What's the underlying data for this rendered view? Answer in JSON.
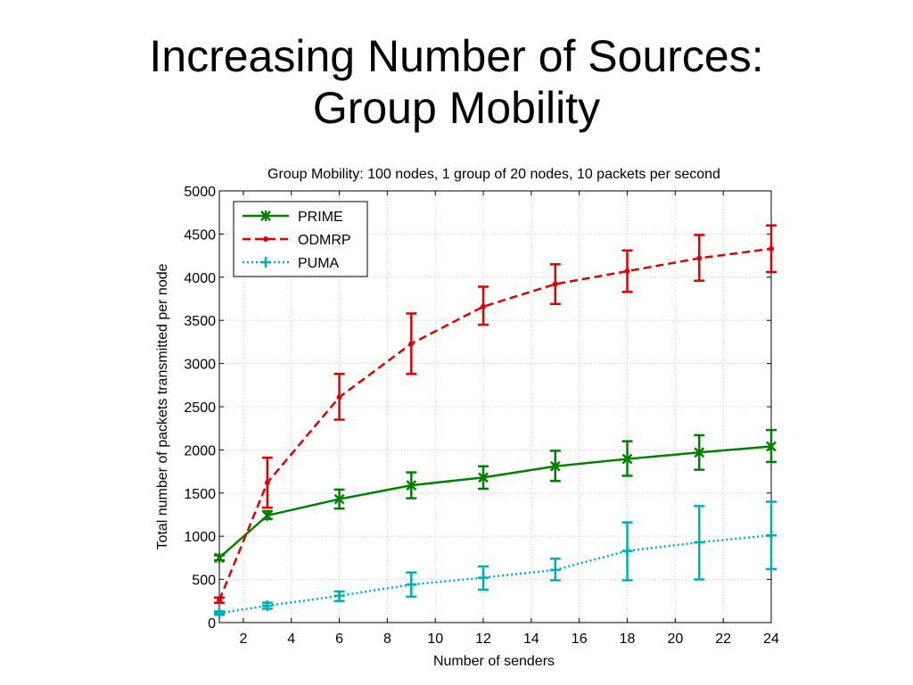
{
  "slide": {
    "title_line1": "Increasing Number of Sources:",
    "title_line2": "Group Mobility"
  },
  "chart_data": {
    "type": "line",
    "title": "Group Mobility: 100 nodes, 1 group of 20 nodes, 10 packets per second",
    "xlabel": "Number of senders",
    "ylabel": "Total number of packets transmitted per node",
    "xlim": [
      1,
      24
    ],
    "ylim": [
      0,
      5000
    ],
    "xticks": [
      2,
      4,
      6,
      8,
      10,
      12,
      14,
      16,
      18,
      20,
      22,
      24
    ],
    "yticks": [
      0,
      500,
      1000,
      1500,
      2000,
      2500,
      3000,
      3500,
      4000,
      4500,
      5000
    ],
    "grid": true,
    "legend_position": "top-left",
    "series": [
      {
        "name": "PRIME",
        "color": "#008000",
        "line_style": "solid",
        "marker": "x",
        "x": [
          1,
          3,
          6,
          9,
          12,
          15,
          18,
          21,
          24
        ],
        "y": [
          750,
          1240,
          1430,
          1590,
          1680,
          1810,
          1895,
          1970,
          2040
        ],
        "err_low": [
          720,
          1200,
          1320,
          1440,
          1550,
          1640,
          1700,
          1770,
          1860
        ],
        "err_high": [
          780,
          1290,
          1540,
          1740,
          1810,
          1990,
          2100,
          2170,
          2230
        ]
      },
      {
        "name": "ODMRP",
        "color": "#e00000",
        "line_style": "dashed",
        "marker": "dot",
        "x": [
          1,
          3,
          6,
          9,
          12,
          15,
          18,
          21,
          24
        ],
        "y": [
          260,
          1620,
          2610,
          3230,
          3660,
          3920,
          4070,
          4220,
          4330
        ],
        "err_low": [
          230,
          1330,
          2350,
          2880,
          3450,
          3690,
          3830,
          3960,
          4060
        ],
        "err_high": [
          290,
          1910,
          2880,
          3580,
          3890,
          4150,
          4310,
          4490,
          4600
        ]
      },
      {
        "name": "PUMA",
        "color": "#00b0b0",
        "line_style": "dotted",
        "marker": "plus",
        "x": [
          1,
          3,
          6,
          9,
          12,
          15,
          18,
          21,
          24
        ],
        "y": [
          110,
          195,
          310,
          440,
          520,
          610,
          830,
          930,
          1010
        ],
        "err_low": [
          90,
          160,
          250,
          300,
          380,
          490,
          490,
          500,
          620
        ],
        "err_high": [
          130,
          230,
          360,
          580,
          650,
          740,
          1160,
          1350,
          1400
        ]
      }
    ]
  }
}
